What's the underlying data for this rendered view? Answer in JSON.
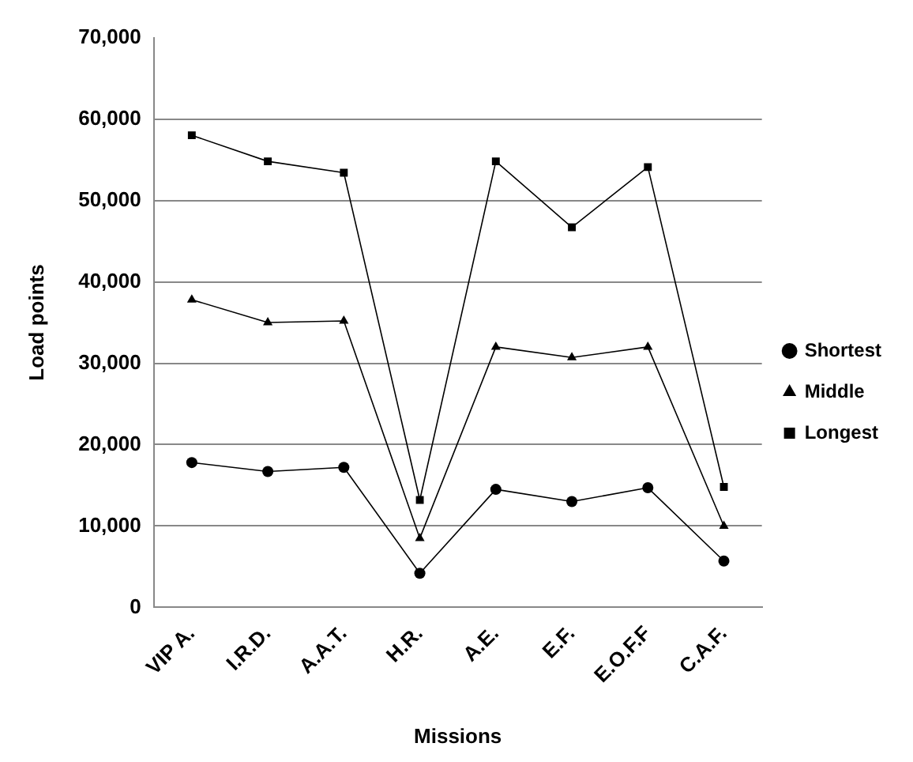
{
  "chart_data": {
    "type": "line",
    "xlabel": "Missions",
    "ylabel": "Load points",
    "categories": [
      "VIP A.",
      "I.R.D.",
      "A.A.T.",
      "H.R.",
      "A.E.",
      "E.F.",
      "E.O.F.F",
      "C.A.F."
    ],
    "series": [
      {
        "name": "Shortest",
        "color": "#000000",
        "marker": "circle",
        "values": [
          17800,
          16700,
          17200,
          4200,
          14500,
          13000,
          14700,
          5700
        ]
      },
      {
        "name": "Middle",
        "color": "#000000",
        "marker": "triangle",
        "values": [
          37800,
          35000,
          35200,
          8500,
          32000,
          30700,
          32000,
          10000
        ]
      },
      {
        "name": "Longest",
        "color": "#000000",
        "marker": "square",
        "values": [
          58000,
          54800,
          53400,
          13200,
          54800,
          46700,
          54100,
          14800
        ]
      }
    ],
    "ylim": [
      0,
      70000
    ],
    "yticks": [
      0,
      {
        "value": 10000,
        "label": "10,000"
      },
      {
        "value": 20000,
        "label": "20,000"
      },
      {
        "value": 30000,
        "label": "30,000"
      },
      {
        "value": 40000,
        "label": "40,000"
      },
      {
        "value": 50000,
        "label": "50,000"
      },
      {
        "value": 60000,
        "label": "60,000"
      },
      {
        "value": 70000,
        "label": "70,000"
      }
    ],
    "grid": "y",
    "legend": "right"
  }
}
